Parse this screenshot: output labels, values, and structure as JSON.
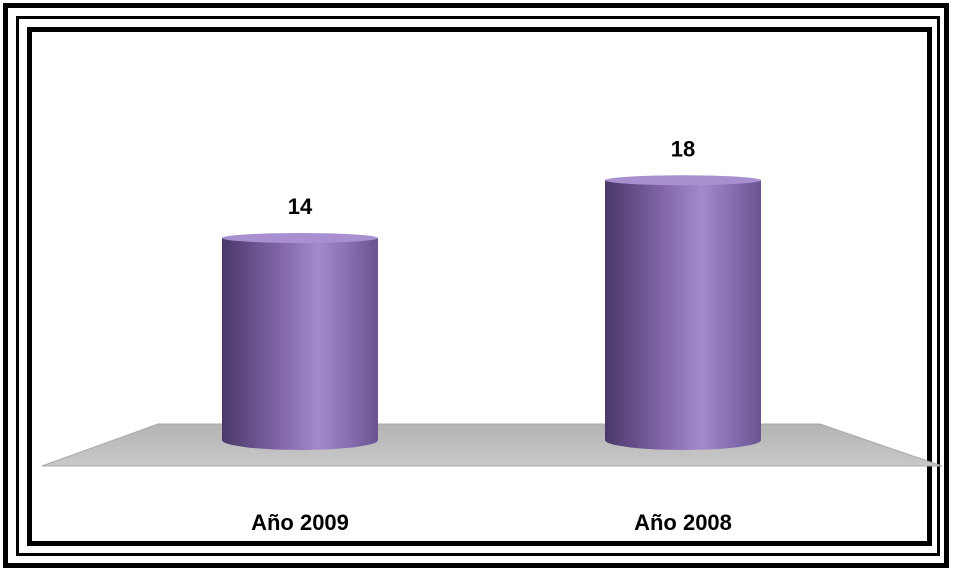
{
  "chart_data": {
    "type": "bar",
    "style": "3d-cylinder",
    "categories": [
      "Año 2009",
      "Año 2008"
    ],
    "values": [
      14,
      18
    ],
    "data_labels": [
      "14",
      "18"
    ],
    "title": "",
    "xlabel": "",
    "ylabel": "",
    "ylim": [
      0,
      20
    ],
    "grid": false,
    "legend": "none",
    "colors": {
      "bar": "#8e72b8",
      "bar_dark": "#4a3868",
      "bar_light": "#a890d0",
      "floor": "#c0c0c0",
      "frame": "#000000"
    }
  }
}
